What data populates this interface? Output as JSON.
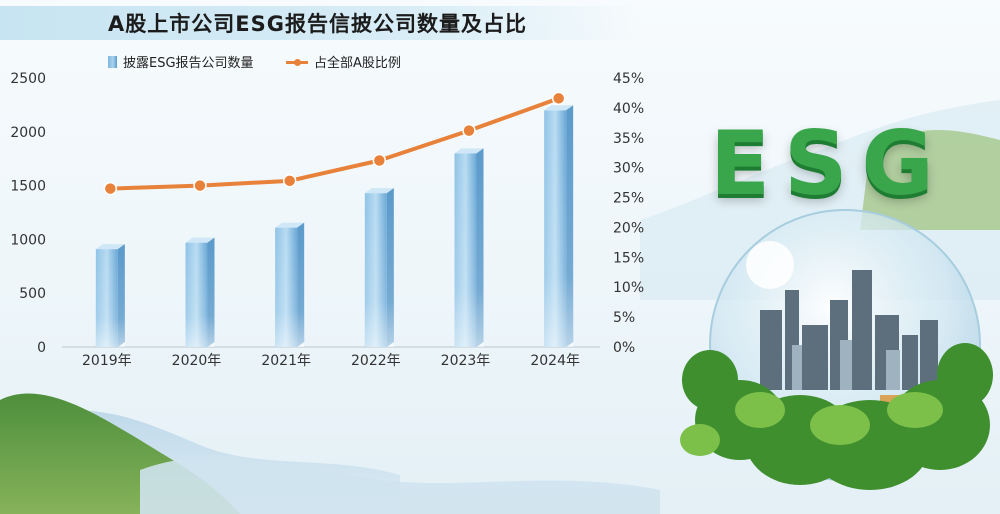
{
  "title": "A股上市公司ESG报告信披公司数量及占比",
  "legend": {
    "bar_label": "披露ESG报告公司数量",
    "line_label": "占全部A股比例"
  },
  "logo_text": "ESG",
  "colors": {
    "bar": "#7fb6dd",
    "line": "#e8823a",
    "title_bg": "#c7e4f2",
    "logo_green": "#39a64b"
  },
  "chart_data": {
    "type": "bar",
    "categories": [
      "2019年",
      "2020年",
      "2021年",
      "2022年",
      "2023年",
      "2024年"
    ],
    "series": [
      {
        "name": "披露ESG报告公司数量",
        "type": "bar",
        "axis": "left",
        "values": [
          910,
          970,
          1110,
          1430,
          1800,
          2200
        ]
      },
      {
        "name": "占全部A股比例",
        "type": "line",
        "axis": "right",
        "values": [
          26.5,
          27.0,
          27.8,
          31.2,
          36.2,
          41.6
        ]
      }
    ],
    "y_left": {
      "min": 0,
      "max": 2500,
      "ticks": [
        "0",
        "500",
        "1000",
        "1500",
        "2000",
        "2500"
      ]
    },
    "y_right": {
      "min": 0,
      "max": 45,
      "ticks": [
        "0%",
        "5%",
        "10%",
        "15%",
        "20%",
        "25%",
        "30%",
        "35%",
        "40%",
        "45%"
      ]
    },
    "grid": false,
    "legend_position": "top"
  }
}
